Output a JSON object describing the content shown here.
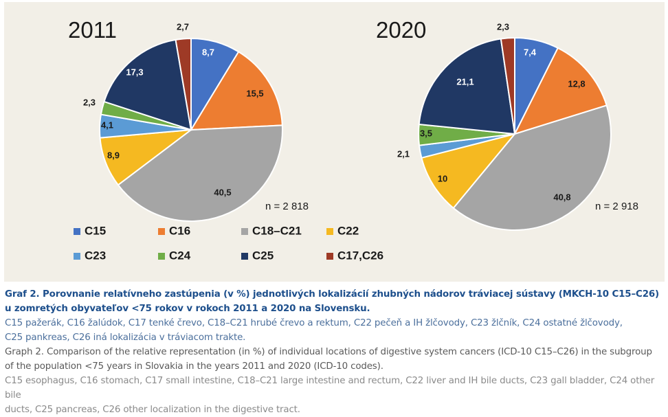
{
  "chart_data": [
    {
      "type": "pie",
      "title": "2011",
      "n_label": "n = 2 818",
      "categories": [
        "C15",
        "C16",
        "C18–C21",
        "C22",
        "C23",
        "C24",
        "C25",
        "C17,C26"
      ],
      "value_labels": [
        "8,7",
        "15,5",
        "40,5",
        "8,9",
        "4,1",
        "2,3",
        "17,3",
        "2,7"
      ],
      "values": [
        8.7,
        15.5,
        40.5,
        8.9,
        4.1,
        2.3,
        17.3,
        2.7
      ]
    },
    {
      "type": "pie",
      "title": "2020",
      "n_label": "n = 2 918",
      "categories": [
        "C15",
        "C16",
        "C18–C21",
        "C22",
        "C23",
        "C24",
        "C25",
        "C17,C26"
      ],
      "value_labels": [
        "7,4",
        "12,8",
        "40,8",
        "10",
        "2,1",
        "3,5",
        "21,1",
        "2,3"
      ],
      "values": [
        7.4,
        12.8,
        40.8,
        10,
        2.1,
        3.5,
        21.1,
        2.3
      ]
    }
  ],
  "legend": {
    "placement": "bottom-left",
    "items": [
      {
        "label": "C15",
        "color": "#4472c4"
      },
      {
        "label": "C16",
        "color": "#ed7d31"
      },
      {
        "label": "C18–C21",
        "color": "#a5a5a5"
      },
      {
        "label": "C22",
        "color": "#f5b921"
      },
      {
        "label": "C23",
        "color": "#5b9bd5"
      },
      {
        "label": "C24",
        "color": "#70ad47"
      },
      {
        "label": "C25",
        "color": "#203864"
      },
      {
        "label": "C17,C26",
        "color": "#9e3a26"
      }
    ]
  },
  "caption": {
    "sk_title_1": "Graf 2. Porovnanie relatívneho zastúpenia (v %) jednotlivých lokalizácií zhubných nádorov tráviacej sústavy (MKCH-10 C15–C26)",
    "sk_title_2": "u zomretých obyvateľov <75 rokov v rokoch 2011 a 2020 na Slovensku.",
    "sk_legend_1": "C15 pažerák, C16 žalúdok, C17 tenké črevo, C18–C21 hrubé črevo a rektum, C22 pečeň a IH žlčovody, C23 žlčník, C24 ostatné žlčovody,",
    "sk_legend_2": "C25 pankreas, C26 iná lokalizácia v tráviacom trakte.",
    "en_title_1": "Graph 2. Comparison of the relative representation (in %) of individual locations of digestive system cancers (ICD-10 C15–C26) in the subgroup",
    "en_title_2": "of the population <75 years in Slovakia in the years 2011 and 2020 (ICD-10 codes).",
    "en_legend_1": "C15 esophagus, C16 stomach, C17 small intestine, C18–C21 large intestine and rectum, C22 liver and IH bile ducts, C23 gall bladder, C24 other bile",
    "en_legend_2": "ducts, C25 pancreas, C26 other localization in the digestive tract."
  }
}
